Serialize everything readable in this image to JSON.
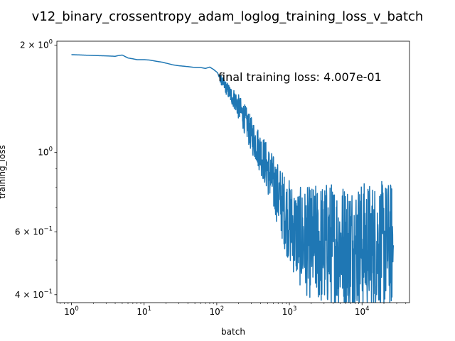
{
  "chart_data": {
    "type": "line",
    "title": "v12_binary_crossentropy_adam_loglog_training_loss_v_batch",
    "xlabel": "batch",
    "ylabel": "training_loss",
    "xscale": "log",
    "yscale": "log",
    "xlim": [
      0.63,
      45000
    ],
    "ylim": [
      0.38,
      2.05
    ],
    "grid": false,
    "line_color": "#1f77b4",
    "annotation": "final training loss: 4.007e-01",
    "x_ticks": [
      {
        "value": 1,
        "base": "10",
        "exp": "0"
      },
      {
        "value": 10,
        "base": "10",
        "exp": "1"
      },
      {
        "value": 100,
        "base": "10",
        "exp": "2"
      },
      {
        "value": 1000,
        "base": "10",
        "exp": "3"
      },
      {
        "value": 10000,
        "base": "10",
        "exp": "4"
      }
    ],
    "y_ticks": [
      {
        "value": 2,
        "mant": "2 × 10",
        "exp": "0"
      },
      {
        "value": 1,
        "mant": "10",
        "exp": "0"
      },
      {
        "value": 0.6,
        "mant": "6 × 10",
        "exp": "−1"
      },
      {
        "value": 0.4,
        "mant": "4 × 10",
        "exp": "−1"
      }
    ],
    "y_minor_ticks": [
      0.5,
      0.7,
      0.8,
      0.9
    ],
    "series": [
      {
        "x": [
          1,
          2,
          3,
          4,
          4.5,
          5,
          6,
          7,
          8,
          10,
          12,
          15,
          18,
          20,
          25,
          30,
          35,
          40,
          50,
          60,
          70,
          80,
          90,
          100,
          110,
          120,
          140,
          160,
          180,
          200,
          230,
          260,
          300,
          350,
          400,
          450,
          500,
          550,
          600,
          650,
          700,
          800,
          900,
          1000,
          1200,
          1400,
          1600,
          2000,
          2500,
          3000,
          4000,
          5000,
          7000,
          10000,
          14000,
          20000,
          27000
        ],
        "y": [
          1.88,
          1.87,
          1.865,
          1.86,
          1.87,
          1.875,
          1.84,
          1.83,
          1.82,
          1.82,
          1.815,
          1.8,
          1.79,
          1.78,
          1.76,
          1.75,
          1.745,
          1.74,
          1.73,
          1.73,
          1.72,
          1.735,
          1.71,
          1.68,
          1.62,
          1.57,
          1.5,
          1.44,
          1.4,
          1.34,
          1.27,
          1.2,
          1.12,
          1.06,
          1.0,
          0.95,
          0.9,
          0.86,
          0.82,
          0.79,
          0.76,
          0.71,
          0.67,
          0.64,
          0.6,
          0.58,
          0.565,
          0.56,
          0.555,
          0.55,
          0.55,
          0.55,
          0.55,
          0.55,
          0.55,
          0.55,
          0.55
        ],
        "noise": [
          0,
          0,
          0,
          0,
          0,
          0,
          0,
          0,
          0,
          0,
          0,
          0,
          0,
          0,
          0,
          0,
          0,
          0,
          0,
          0,
          0,
          0,
          0,
          0,
          0.01,
          0.015,
          0.02,
          0.025,
          0.03,
          0.035,
          0.04,
          0.045,
          0.05,
          0.055,
          0.06,
          0.065,
          0.07,
          0.075,
          0.08,
          0.085,
          0.09,
          0.1,
          0.11,
          0.12,
          0.13,
          0.14,
          0.15,
          0.16,
          0.17,
          0.18,
          0.18,
          0.18,
          0.18,
          0.18,
          0.18,
          0.18,
          0.18
        ]
      }
    ]
  }
}
